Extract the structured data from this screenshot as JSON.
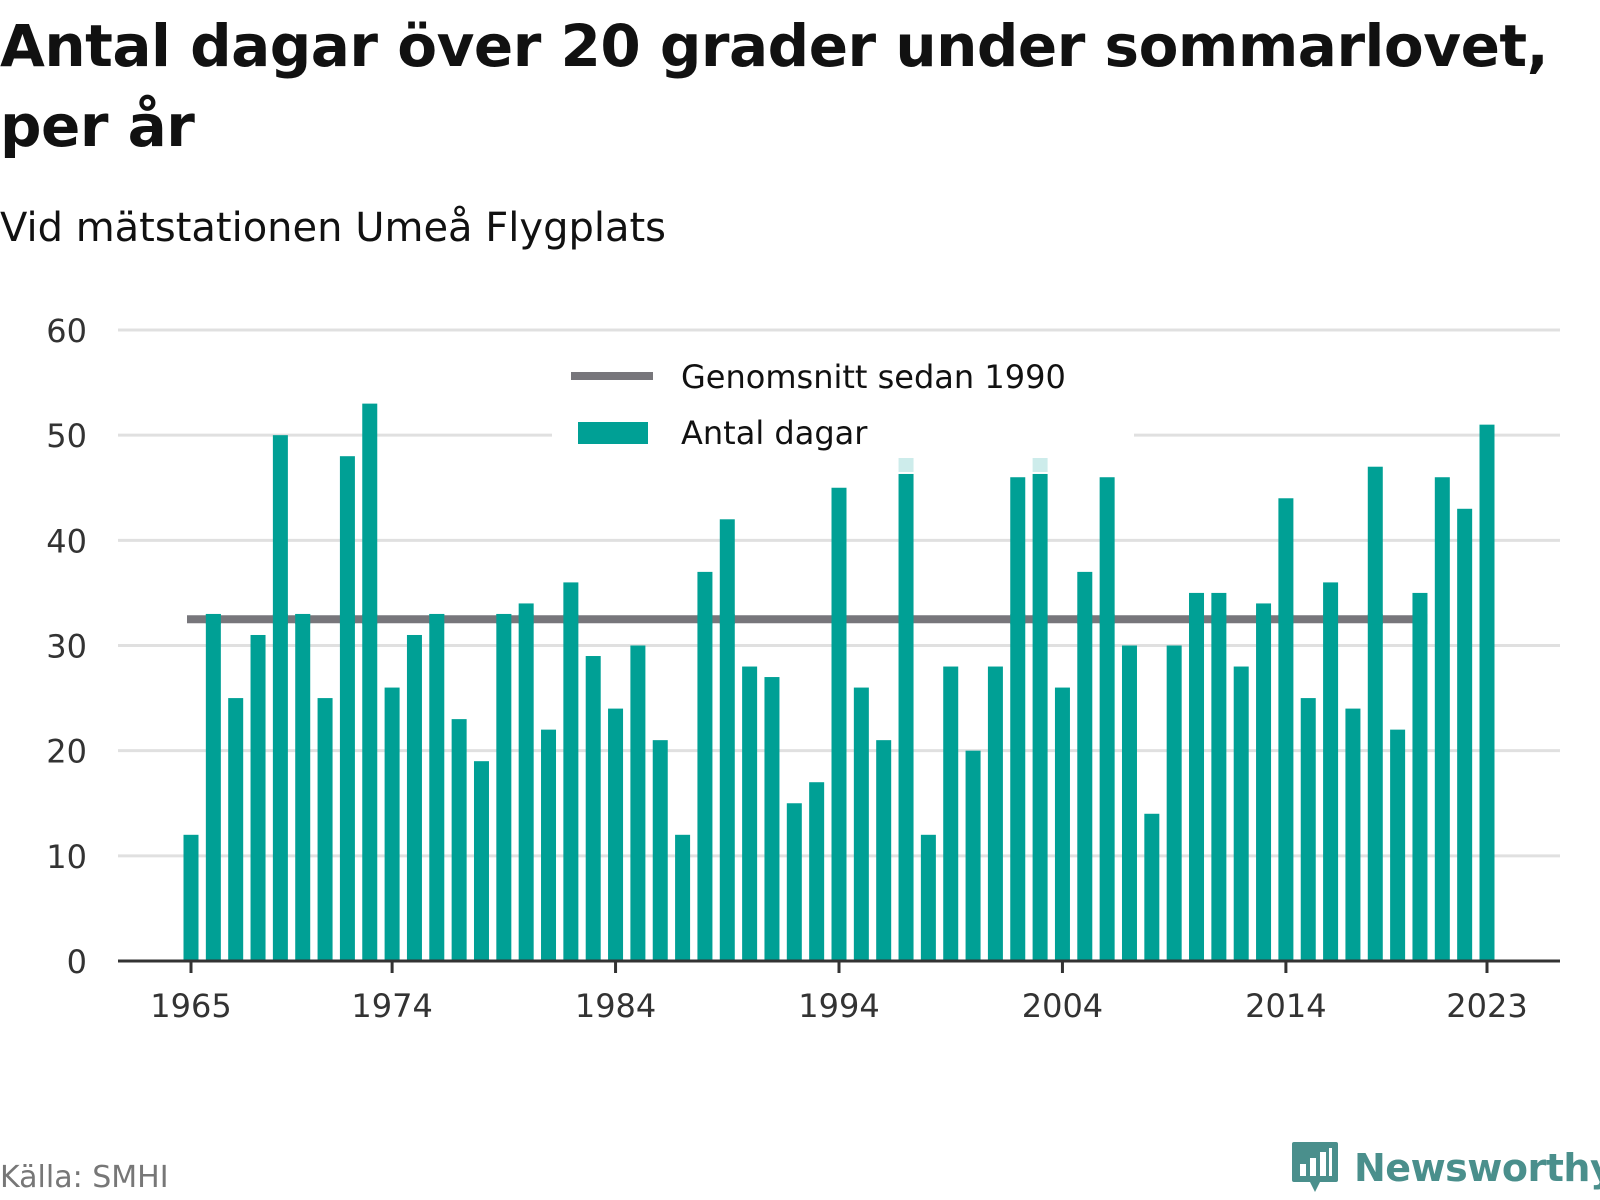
{
  "title": "Antal dagar över 20 grader under sommarlovet, per år",
  "subtitle": "Vid mätstationen Umeå Flygplats",
  "source": "Källa: SMHI",
  "brand": "Newsworthy",
  "colors": {
    "bar": "#00a095",
    "bar_highlight": "#cdeceb",
    "average_line": "#77767b",
    "grid": "#e0e0e0",
    "axis": "#333333",
    "brand": "#4a8f8c"
  },
  "chart_data": {
    "type": "bar",
    "x_start": 1965,
    "x_end": 2023,
    "categories": [
      1965,
      1966,
      1967,
      1968,
      1969,
      1970,
      1971,
      1972,
      1973,
      1974,
      1975,
      1976,
      1977,
      1978,
      1979,
      1980,
      1981,
      1982,
      1983,
      1984,
      1985,
      1986,
      1987,
      1988,
      1989,
      1990,
      1991,
      1992,
      1993,
      1994,
      1995,
      1996,
      1997,
      1998,
      1999,
      2000,
      2001,
      2002,
      2003,
      2004,
      2005,
      2006,
      2007,
      2008,
      2009,
      2010,
      2011,
      2012,
      2013,
      2014,
      2015,
      2016,
      2017,
      2018,
      2019,
      2020,
      2021,
      2022,
      2023
    ],
    "xticks": [
      1965,
      1974,
      1984,
      1994,
      2004,
      2014,
      2023
    ],
    "yticks": [
      0,
      10,
      20,
      30,
      40,
      50,
      60
    ],
    "ylim": [
      0,
      60
    ],
    "grid": true,
    "legend_position": "top-center",
    "series": [
      {
        "name": "Antal dagar",
        "type": "bar",
        "values": [
          12,
          33,
          25,
          31,
          50,
          33,
          25,
          48,
          53,
          26,
          31,
          33,
          23,
          19,
          33,
          34,
          22,
          36,
          29,
          24,
          30,
          21,
          12,
          37,
          42,
          28,
          27,
          15,
          17,
          45,
          26,
          21,
          49,
          12,
          28,
          20,
          28,
          46,
          49,
          26,
          37,
          46,
          30,
          14,
          30,
          35,
          35,
          28,
          34,
          44,
          25,
          36,
          24,
          47,
          22,
          35,
          46,
          43,
          51
        ],
        "highlighted": [
          1997,
          2003
        ]
      },
      {
        "name": "Genomsnitt sedan 1990",
        "type": "line",
        "value": 32.5,
        "x_range": [
          1965,
          2020
        ]
      }
    ]
  }
}
